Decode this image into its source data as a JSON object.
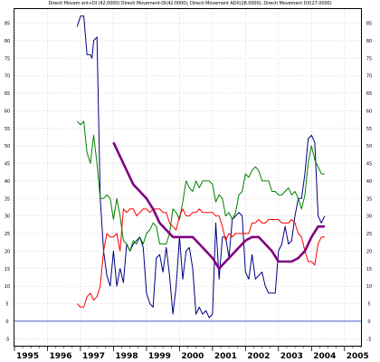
{
  "chart_data": {
    "type": "line",
    "title": "Directi Movem ent+DI (42.0000) Directi Movement-DI(42.0000), Directi Movement ADX(28.0000), Directi Movement DX(27.0000)",
    "xlabel": "",
    "ylabel": "",
    "x_ticks": [
      "1995",
      "1996",
      "1997",
      "1998",
      "1999",
      "2000",
      "2001",
      "2002",
      "2003",
      "2004",
      "2005"
    ],
    "y_ticks_left": [
      -5,
      0,
      5,
      10,
      15,
      20,
      25,
      30,
      35,
      40,
      45,
      50,
      55,
      60,
      65,
      70,
      75,
      80,
      85
    ],
    "y_ticks_right": [
      -5,
      0,
      5,
      10,
      15,
      20,
      25,
      30,
      35,
      40,
      45,
      50,
      55,
      60,
      65,
      70,
      75,
      80,
      85
    ],
    "xlim": [
      1995.0,
      2005.5
    ],
    "ylim": [
      -7,
      89
    ],
    "grid": true,
    "zero_line": 0,
    "series": [
      {
        "color": "#000080",
        "x": [
          1996.9,
          1997.0,
          1997.1,
          1997.2,
          1997.3,
          1997.35,
          1997.4,
          1997.5,
          1997.6,
          1997.7,
          1997.8,
          1997.9,
          1998.0,
          1998.1,
          1998.2,
          1998.3,
          1998.4,
          1998.5,
          1998.6,
          1998.7,
          1998.8,
          1998.9,
          1999.0,
          1999.1,
          1999.2,
          1999.3,
          1999.4,
          1999.5,
          1999.6,
          1999.7,
          1999.8,
          1999.9,
          2000.0,
          2000.1,
          2000.2,
          2000.3,
          2000.4,
          2000.5,
          2000.6,
          2000.7,
          2000.8,
          2000.9,
          2001.0,
          2001.1,
          2001.2,
          2001.3,
          2001.4,
          2001.5,
          2001.6,
          2001.7,
          2001.8,
          2001.9,
          2002.0,
          2002.1,
          2002.2,
          2002.3,
          2002.4,
          2002.5,
          2002.6,
          2002.7,
          2002.8,
          2002.9,
          2003.0,
          2003.1,
          2003.2,
          2003.3,
          2003.4,
          2003.5,
          2003.6,
          2003.7,
          2003.8,
          2003.9,
          2004.0,
          2004.1,
          2004.2,
          2004.3,
          2004.4
        ],
        "y": [
          84,
          87,
          87,
          76,
          76,
          75,
          80,
          81,
          35,
          20,
          13,
          10,
          20,
          10,
          15,
          11,
          22,
          20,
          22,
          23,
          24,
          21,
          8,
          5,
          4,
          18,
          19,
          14,
          21,
          13,
          2,
          10,
          24,
          12,
          20,
          21,
          15,
          2,
          4,
          2,
          3,
          1,
          2,
          28,
          12,
          24,
          24,
          18,
          29,
          30,
          31,
          30,
          14,
          12,
          19,
          12,
          13,
          14,
          10,
          8,
          8,
          8,
          20,
          22,
          27,
          22,
          23,
          30,
          35,
          35,
          42,
          52,
          53,
          51,
          30,
          28,
          30
        ]
      },
      {
        "color": "#008000",
        "x": [
          1996.9,
          1997.0,
          1997.1,
          1997.2,
          1997.3,
          1997.4,
          1997.5,
          1997.6,
          1997.7,
          1997.8,
          1997.9,
          1998.0,
          1998.1,
          1998.2,
          1998.3,
          1998.4,
          1998.5,
          1998.6,
          1998.7,
          1998.8,
          1998.9,
          1999.0,
          1999.1,
          1999.2,
          1999.3,
          1999.4,
          1999.5,
          1999.6,
          1999.7,
          1999.8,
          1999.9,
          2000.0,
          2000.1,
          2000.2,
          2000.3,
          2000.4,
          2000.5,
          2000.6,
          2000.7,
          2000.8,
          2000.9,
          2001.0,
          2001.1,
          2001.2,
          2001.3,
          2001.4,
          2001.5,
          2001.6,
          2001.7,
          2001.8,
          2001.9,
          2002.0,
          2002.1,
          2002.2,
          2002.3,
          2002.4,
          2002.5,
          2002.6,
          2002.7,
          2002.8,
          2002.9,
          2003.0,
          2003.1,
          2003.2,
          2003.3,
          2003.4,
          2003.5,
          2003.6,
          2003.7,
          2003.8,
          2003.9,
          2004.0,
          2004.1,
          2004.2,
          2004.3,
          2004.4
        ],
        "y": [
          57,
          56,
          57,
          48,
          45,
          53,
          45,
          35,
          35,
          36,
          35,
          29,
          35,
          30,
          23,
          22,
          20,
          23,
          22,
          24,
          22,
          25,
          26,
          28,
          27,
          22,
          22,
          22,
          25,
          32,
          31,
          29,
          34,
          40,
          38,
          37,
          40,
          38,
          40,
          40,
          40,
          39,
          34,
          36,
          35,
          30,
          31,
          29,
          31,
          36,
          37,
          42,
          41,
          43,
          44,
          43,
          40,
          40,
          40,
          37,
          37,
          36,
          36,
          37,
          38,
          36,
          37,
          35,
          32,
          36,
          45,
          50,
          46,
          44,
          42,
          42
        ]
      },
      {
        "color": "#ff0000",
        "x": [
          1996.9,
          1997.0,
          1997.1,
          1997.2,
          1997.3,
          1997.4,
          1997.5,
          1997.6,
          1997.7,
          1997.8,
          1997.9,
          1998.0,
          1998.1,
          1998.2,
          1998.3,
          1998.4,
          1998.5,
          1998.6,
          1998.7,
          1998.8,
          1998.9,
          1999.0,
          1999.1,
          1999.2,
          1999.3,
          1999.4,
          1999.5,
          1999.6,
          1999.7,
          1999.8,
          1999.9,
          2000.0,
          2000.1,
          2000.2,
          2000.3,
          2000.4,
          2000.5,
          2000.6,
          2000.7,
          2000.8,
          2000.9,
          2001.0,
          2001.1,
          2001.2,
          2001.3,
          2001.4,
          2001.5,
          2001.6,
          2001.7,
          2001.8,
          2001.9,
          2002.0,
          2002.1,
          2002.2,
          2002.3,
          2002.4,
          2002.5,
          2002.6,
          2002.7,
          2002.8,
          2002.9,
          2003.0,
          2003.1,
          2003.2,
          2003.3,
          2003.4,
          2003.5,
          2003.6,
          2003.7,
          2003.8,
          2003.9,
          2004.0,
          2004.1,
          2004.2,
          2004.3,
          2004.4
        ],
        "y": [
          5,
          4,
          4,
          7,
          8,
          6,
          7,
          10,
          20,
          25,
          24,
          24,
          25,
          20,
          32,
          31,
          32,
          32,
          30,
          31,
          32,
          32,
          31,
          32,
          32,
          32,
          31,
          31,
          28,
          27,
          26,
          30,
          32,
          30,
          30,
          31,
          31,
          32,
          31,
          31,
          31,
          31,
          30,
          30,
          27,
          23,
          25,
          24,
          25,
          25,
          25,
          25,
          25,
          28,
          28,
          29,
          28,
          28,
          29,
          29,
          29,
          29,
          28,
          28,
          28,
          29,
          28,
          25,
          24,
          20,
          17,
          17,
          16,
          22,
          24,
          24
        ]
      },
      {
        "color": "#800080",
        "x": [
          1998.0,
          1998.2,
          1998.4,
          1998.6,
          1998.8,
          1999.0,
          1999.2,
          1999.4,
          1999.6,
          1999.8,
          2000.0,
          2000.2,
          2000.4,
          2000.6,
          2000.8,
          2001.0,
          2001.2,
          2001.4,
          2001.6,
          2001.8,
          2002.0,
          2002.2,
          2002.4,
          2002.6,
          2002.8,
          2003.0,
          2003.2,
          2003.4,
          2003.6,
          2003.8,
          2004.0,
          2004.2,
          2004.4
        ],
        "y": [
          51,
          47,
          43,
          39,
          37,
          35,
          32,
          28,
          26,
          24,
          24,
          24,
          24,
          22,
          20,
          18,
          15,
          17,
          19,
          21,
          23,
          24,
          24,
          22,
          20,
          17,
          17,
          17,
          18,
          20,
          24,
          27,
          27
        ]
      }
    ]
  }
}
